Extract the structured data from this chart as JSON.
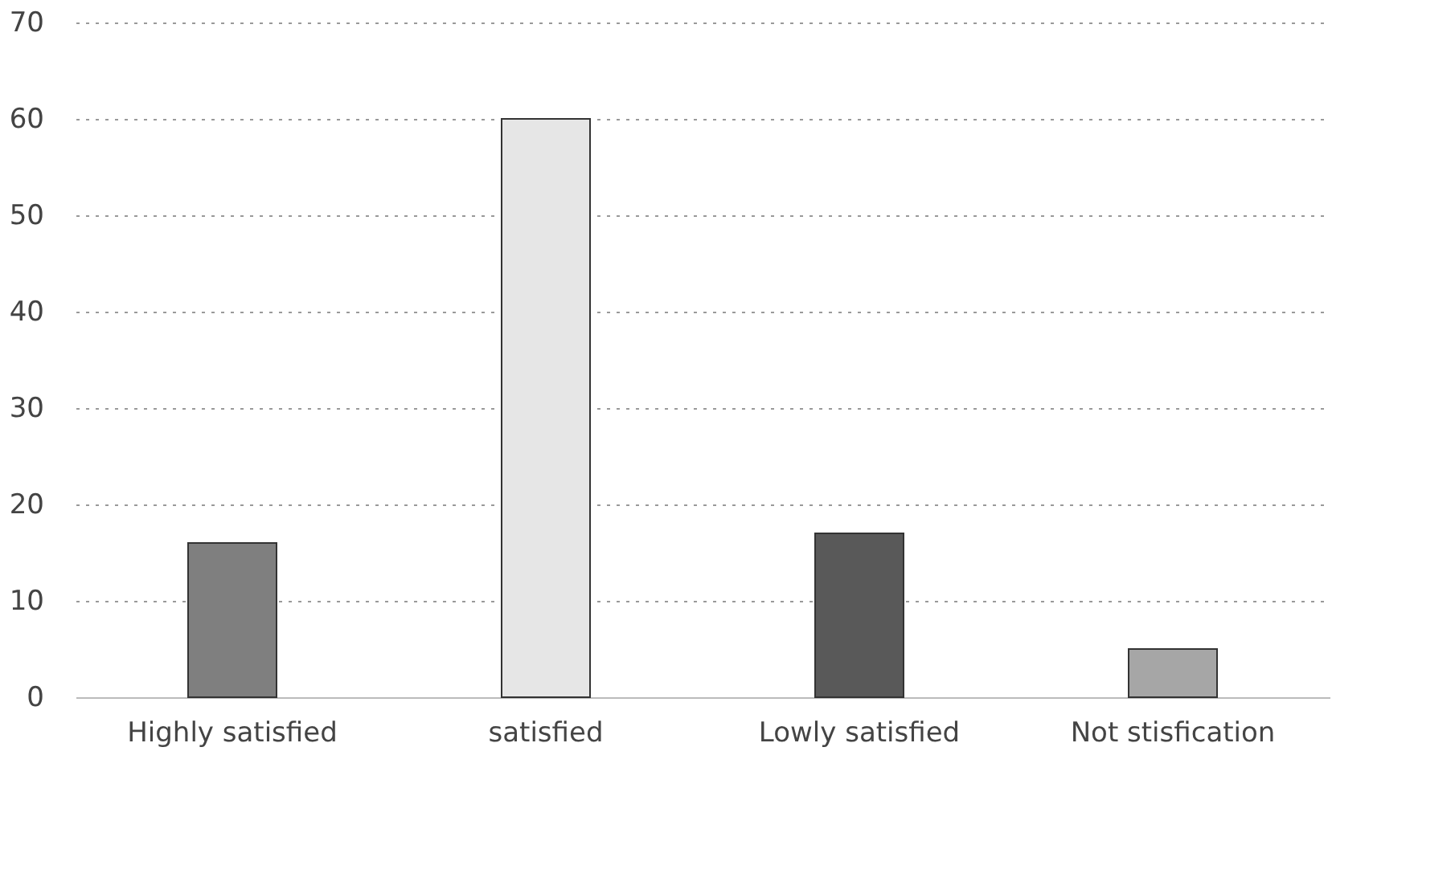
{
  "chart_data": {
    "type": "bar",
    "categories": [
      "Highly satisfied",
      "satisfied",
      "Lowly satisfied",
      "Not stisfication"
    ],
    "values": [
      16,
      60,
      17,
      5
    ],
    "colors": [
      "#7f7f7f",
      "#e6e6e6",
      "#595959",
      "#a6a6a6"
    ],
    "ylim": [
      0,
      70
    ],
    "yticks": [
      0,
      10,
      20,
      30,
      40,
      50,
      60,
      70
    ],
    "grid": "y"
  }
}
